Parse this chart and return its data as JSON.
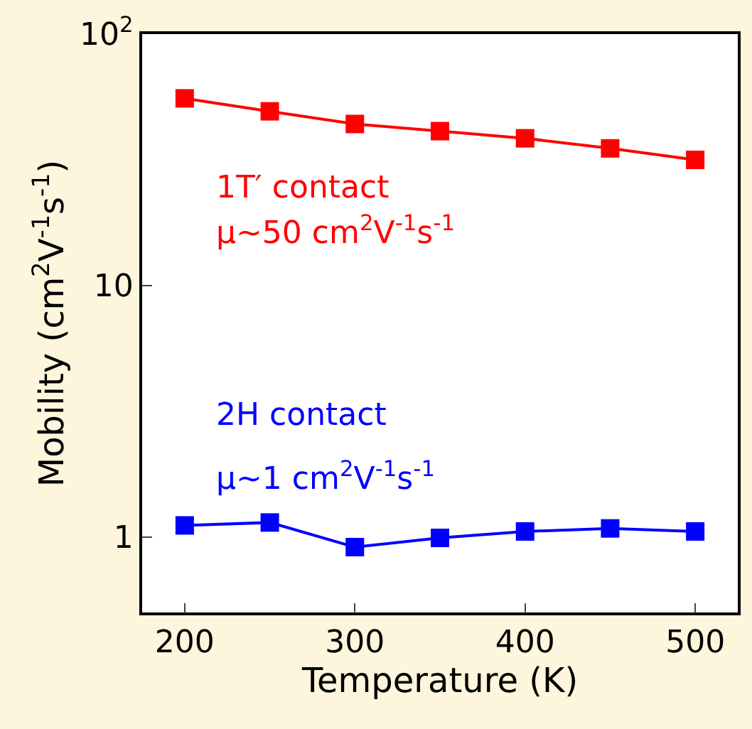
{
  "chart_data": {
    "type": "line",
    "xlabel": "Temperature (K)",
    "ylabel": "Mobility (cm$^{2}$V$^{-1}$s$^{-1}$)",
    "x": [
      200,
      250,
      300,
      350,
      400,
      450,
      500
    ],
    "series": [
      {
        "color": "#ff0000",
        "values": [
          55.5,
          49.3,
          43.9,
          41.1,
          38.5,
          35.1,
          31.6
        ]
      },
      {
        "color": "#0000ff",
        "values": [
          1.11,
          1.14,
          0.91,
          0.99,
          1.05,
          1.08,
          1.05
        ]
      }
    ],
    "annotations": [
      "1T′ contact",
      "μ~50 cm$^{2}$V$^{-1}$s$^{-1}$",
      "2H contact",
      "μ~1 cm$^{2}$V$^{-1}$s$^{-1}$"
    ],
    "log": "y",
    "xlim": [
      175,
      525
    ],
    "ylim": [
      0.5,
      100
    ],
    "xticks": [
      200,
      300,
      400,
      500
    ],
    "yticks": [
      1,
      10,
      {
        "value": 100,
        "label": "10$^{2}$"
      }
    ],
    "marker": "square",
    "line_style": "solid"
  }
}
